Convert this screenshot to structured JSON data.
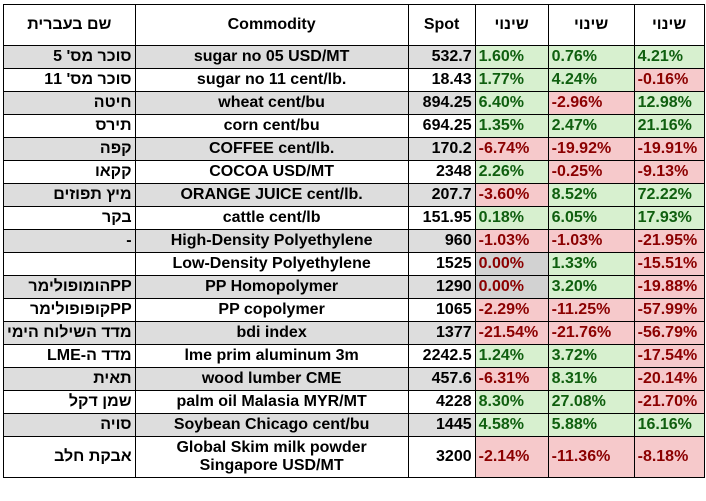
{
  "headers": {
    "hebrew_name": "שם בעברית",
    "commodity": "Commodity",
    "spot": "Spot",
    "change1": "שינוי",
    "change2": "שינוי",
    "change3": "שינוי"
  },
  "rows": [
    {
      "heb": "סוכר מס' 5",
      "commodity": "sugar no 05 USD/MT",
      "spot": "532.7",
      "c1": "1.60%",
      "c2": "0.76%",
      "c3": "4.21%"
    },
    {
      "heb": "סוכר מס' 11",
      "commodity": "sugar no 11 cent/lb.",
      "spot": "18.43",
      "c1": "1.77%",
      "c2": "4.24%",
      "c3": "-0.16%"
    },
    {
      "heb": "חיטה",
      "commodity": "wheat cent/bu",
      "spot": "894.25",
      "c1": "6.40%",
      "c2": "-2.96%",
      "c3": "12.98%"
    },
    {
      "heb": "תירס",
      "commodity": "corn cent/bu",
      "spot": "694.25",
      "c1": "1.35%",
      "c2": "2.47%",
      "c3": "21.16%"
    },
    {
      "heb": "קפה",
      "commodity": "COFFEE cent/lb.",
      "spot": "170.2",
      "c1": "-6.74%",
      "c2": "-19.92%",
      "c3": "-19.91%"
    },
    {
      "heb": "קקאו",
      "commodity": "COCOA USD/MT",
      "spot": "2348",
      "c1": "2.26%",
      "c2": "-0.25%",
      "c3": "-9.13%"
    },
    {
      "heb": "מיץ תפוזים",
      "commodity": "ORANGE JUICE cent/lb.",
      "spot": "207.7",
      "c1": "-3.60%",
      "c2": "8.52%",
      "c3": "72.22%"
    },
    {
      "heb": "בקר",
      "commodity": "cattle cent/lb",
      "spot": "151.95",
      "c1": "0.18%",
      "c2": "6.05%",
      "c3": "17.93%"
    },
    {
      "heb": "-",
      "commodity": "High-Density Polyethylene",
      "spot": "960",
      "c1": "-1.03%",
      "c2": "-1.03%",
      "c3": "-21.95%"
    },
    {
      "heb": "",
      "commodity": "Low-Density Polyethylene",
      "spot": "1525",
      "c1": "0.00%",
      "c2": "1.33%",
      "c3": "-15.51%"
    },
    {
      "heb": "PPהומופולימר",
      "commodity": "PP Homopolymer",
      "spot": "1290",
      "c1": "0.00%",
      "c2": "3.20%",
      "c3": "-19.88%"
    },
    {
      "heb": "PPקופופולימר",
      "commodity": "PP copolymer",
      "spot": "1065",
      "c1": "-2.29%",
      "c2": "-11.25%",
      "c3": "-57.99%"
    },
    {
      "heb": "מדד השילוח הימי",
      "commodity": "bdi index",
      "spot": "1377",
      "c1": "-21.54%",
      "c2": "-21.76%",
      "c3": "-56.79%"
    },
    {
      "heb": "מדד ה-LME",
      "commodity": "lme prim aluminum 3m",
      "spot": "2242.5",
      "c1": "1.24%",
      "c2": "3.72%",
      "c3": "-17.54%"
    },
    {
      "heb": "תאית",
      "commodity": "wood lumber CME",
      "spot": "457.6",
      "c1": "-6.31%",
      "c2": "8.31%",
      "c3": "-20.14%"
    },
    {
      "heb": "שמן דקל",
      "commodity": "palm oil Malasia MYR/MT",
      "spot": "4228",
      "c1": "8.30%",
      "c2": "27.08%",
      "c3": "-21.70%"
    },
    {
      "heb": "סויה",
      "commodity": "Soybean Chicago cent/bu",
      "spot": "1445",
      "c1": "4.58%",
      "c2": "5.88%",
      "c3": "16.16%"
    },
    {
      "heb": "אבקת חלב",
      "commodity": "Global Skim milk powder Singapore USD/MT",
      "spot": "3200",
      "c1": "-2.14%",
      "c2": "-11.36%",
      "c3": "-8.18%"
    }
  ]
}
